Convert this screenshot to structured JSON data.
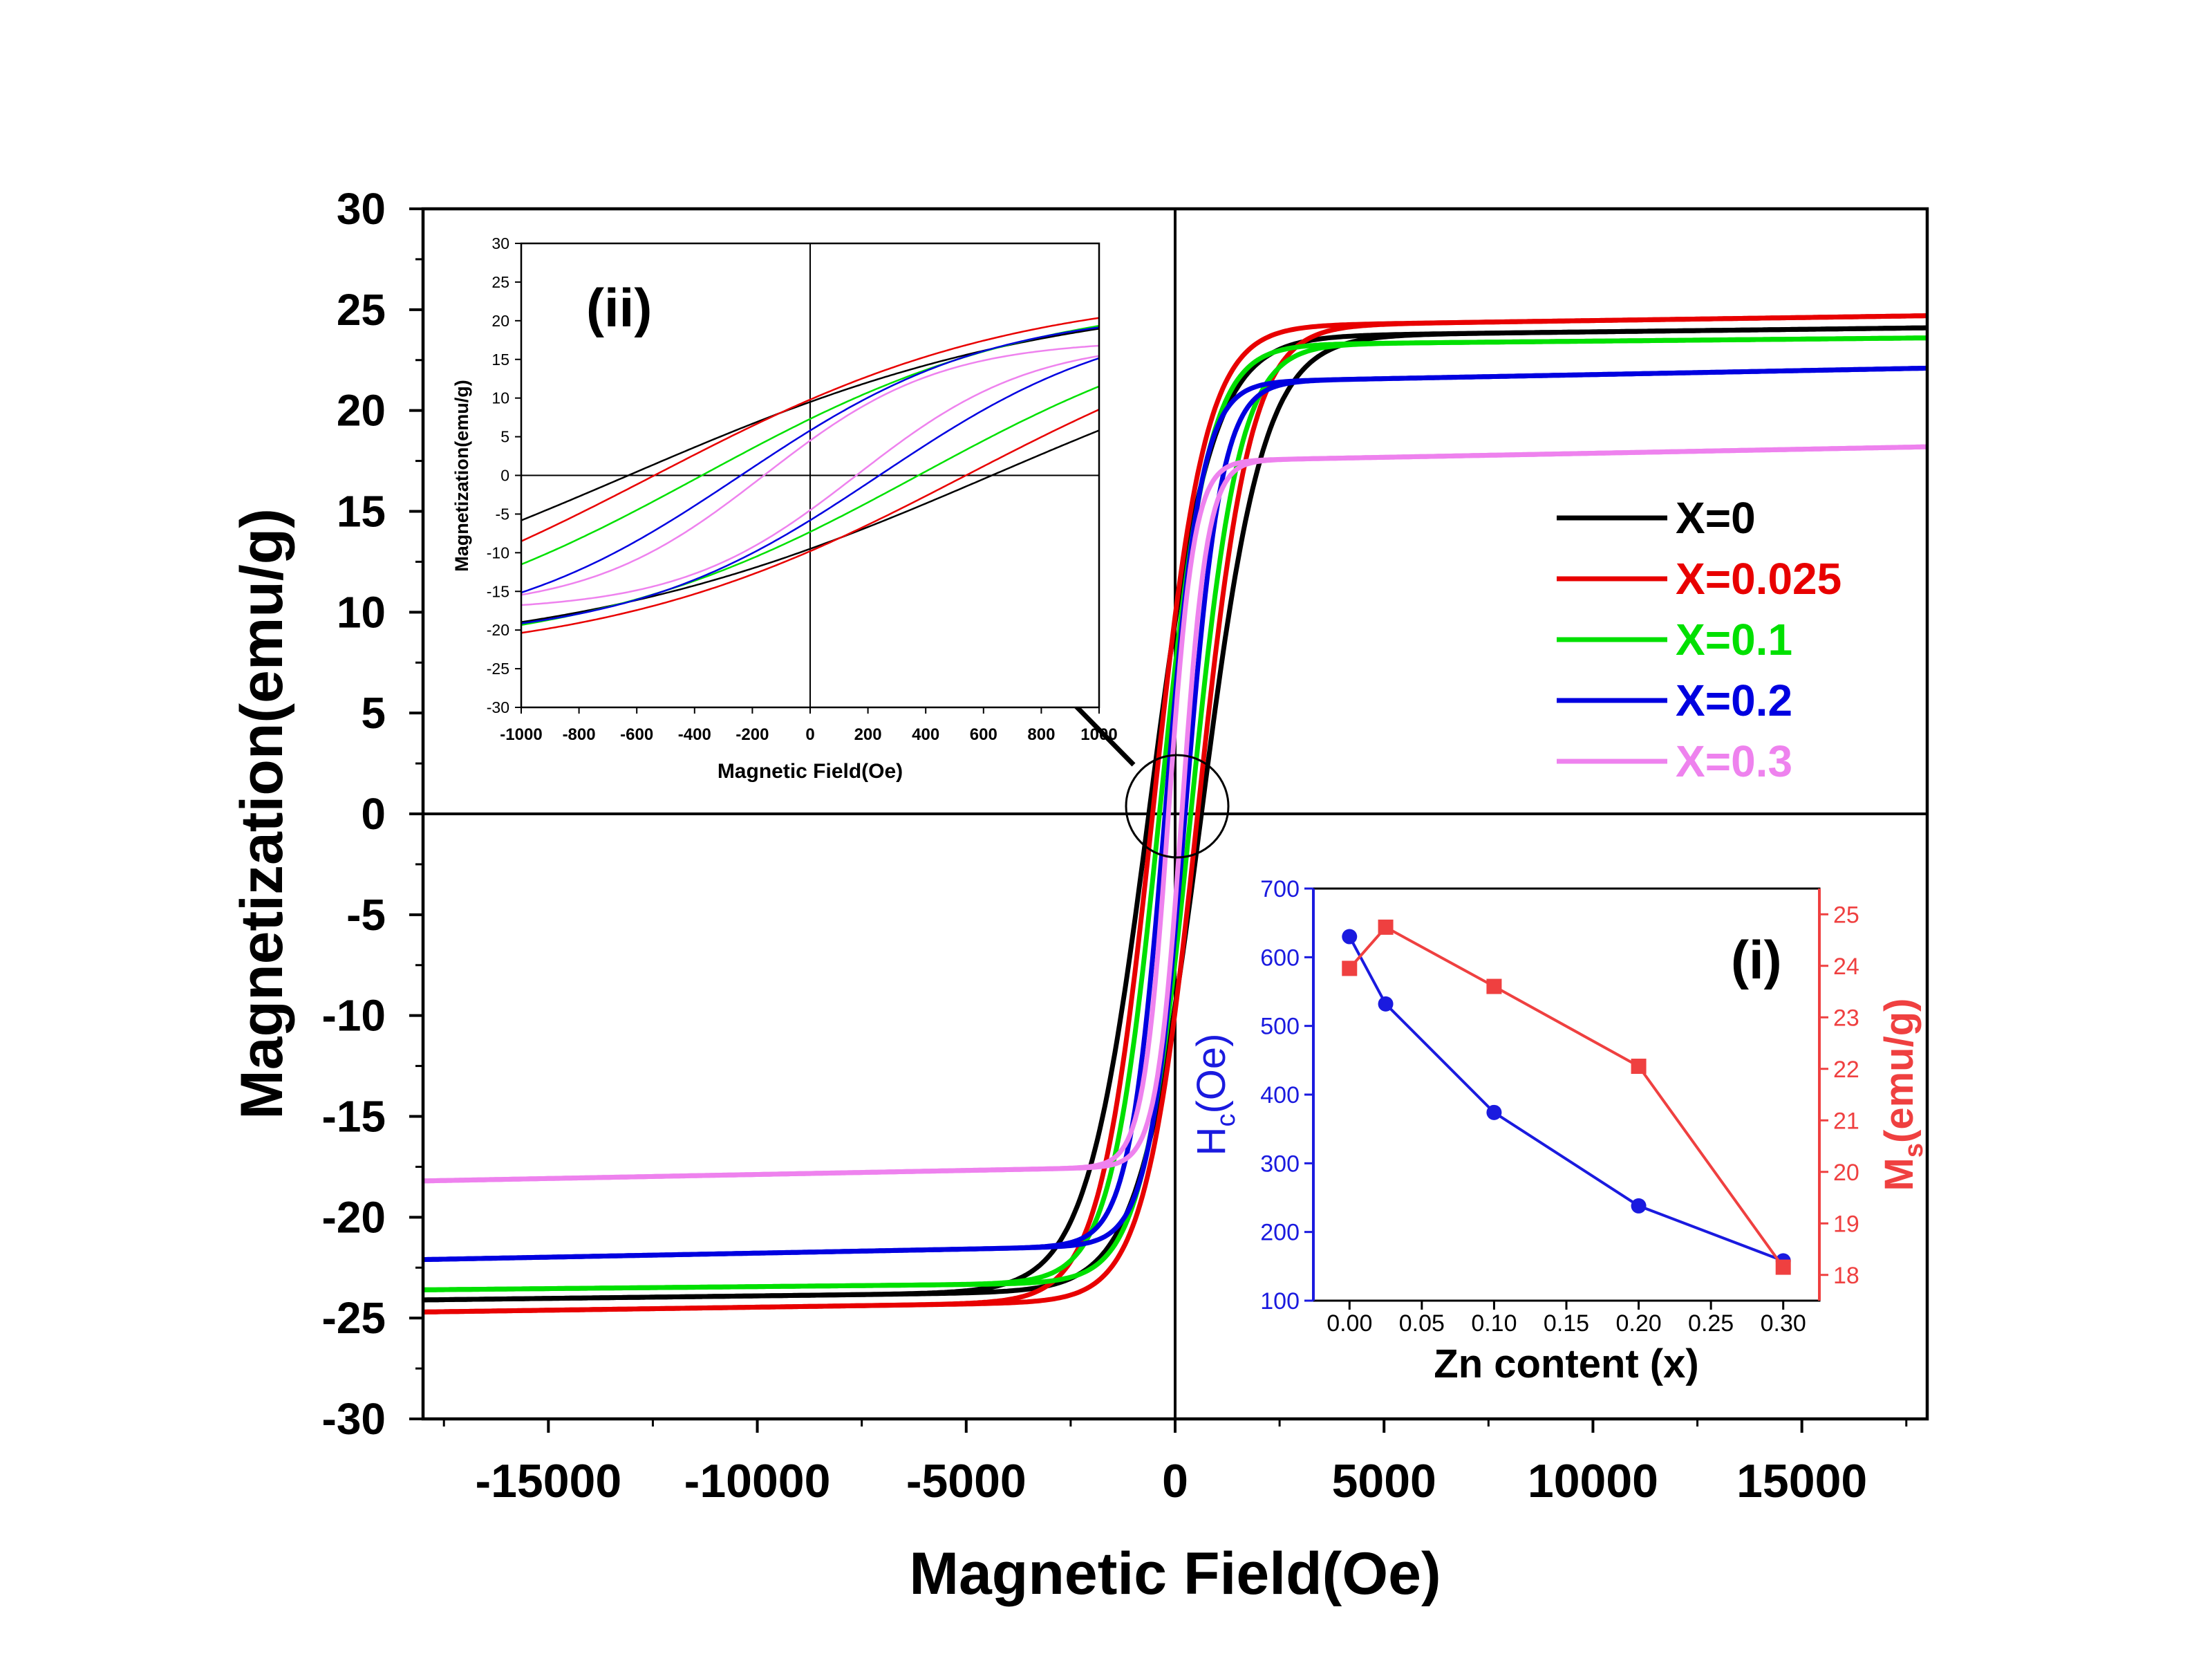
{
  "chart_data": [
    {
      "id": "main",
      "type": "line",
      "title": "",
      "xlabel": "Magnetic Field(Oe)",
      "ylabel": "Magnetization(emu/g)",
      "xlim": [
        -18000,
        18000
      ],
      "ylim": [
        -30,
        30
      ],
      "xticks": [
        -15000,
        -10000,
        -5000,
        0,
        5000,
        10000,
        15000
      ],
      "xtick_labels": [
        "-15000",
        "-10000",
        "-5000",
        "0",
        "5000",
        "10000",
        "15000"
      ],
      "yticks": [
        -30,
        -25,
        -20,
        -15,
        -10,
        -5,
        0,
        5,
        10,
        15,
        20,
        25,
        30
      ],
      "ytick_labels": [
        "-30",
        "-25",
        "-20",
        "-15",
        "-10",
        "-5",
        "0",
        "5",
        "10",
        "15",
        "20",
        "25",
        "30"
      ],
      "legend_position": "right",
      "grid": false,
      "series": [
        {
          "name": "X=0",
          "color": "#000000",
          "ms": 24.1,
          "hc": 630,
          "mr": 9.5,
          "slope": 2.5e-05
        },
        {
          "name": "X=0.025",
          "color": "#e80000",
          "ms": 24.7,
          "hc": 540,
          "mr": 9.8,
          "slope": 3e-05
        },
        {
          "name": "X=0.1",
          "color": "#00e000",
          "ms": 23.6,
          "hc": 375,
          "mr": 7.3,
          "slope": 2e-05
        },
        {
          "name": "X=0.2",
          "color": "#0000e0",
          "ms": 22.1,
          "hc": 240,
          "mr": 5.8,
          "slope": 4e-05
        },
        {
          "name": "X=0.3",
          "color": "#ee82ee",
          "ms": 18.2,
          "hc": 160,
          "mr": 4.5,
          "slope": 4e-05
        }
      ]
    },
    {
      "id": "inset-ii",
      "type": "line",
      "label": "(ii)",
      "xlabel": "Magnetic Field(Oe)",
      "ylabel": "Magnetization(emu/g)",
      "xlim": [
        -1000,
        1000
      ],
      "ylim": [
        -30,
        30
      ],
      "xticks": [
        -1000,
        -800,
        -600,
        -400,
        -200,
        0,
        200,
        400,
        600,
        800,
        1000
      ],
      "xtick_labels": [
        "-1000",
        "-800",
        "-600",
        "-400",
        "-200",
        "0",
        "200",
        "400",
        "600",
        "800",
        "1000"
      ],
      "yticks": [
        -30,
        -25,
        -20,
        -15,
        -10,
        -5,
        0,
        5,
        10,
        15,
        20,
        25,
        30
      ],
      "ytick_labels": [
        "-30",
        "-25",
        "-20",
        "-15",
        "-10",
        "-5",
        "0",
        "5",
        "10",
        "15",
        "20",
        "25",
        "30"
      ],
      "note": "zoomed view of the main loops near the origin"
    },
    {
      "id": "inset-i",
      "type": "line",
      "label": "(i)",
      "xlabel": "Zn content (x)",
      "x": [
        0.0,
        0.025,
        0.1,
        0.2,
        0.3
      ],
      "xlim": [
        -0.025,
        0.325
      ],
      "xticks": [
        0.0,
        0.05,
        0.1,
        0.15,
        0.2,
        0.25,
        0.3
      ],
      "xtick_labels": [
        "0.00",
        "0.05",
        "0.10",
        "0.15",
        "0.20",
        "0.25",
        "0.30"
      ],
      "series": [
        {
          "name": "Hc",
          "axis": "left",
          "color": "#1a1adf",
          "marker": "circle",
          "values": [
            630,
            532,
            374,
            238,
            158
          ]
        },
        {
          "name": "Ms",
          "axis": "right",
          "color": "#ef4040",
          "marker": "square",
          "values": [
            23.95,
            24.75,
            23.6,
            22.05,
            18.15
          ]
        }
      ],
      "left_axis": {
        "label_main": "H",
        "label_sub": "c",
        "label_end": "(Oe)",
        "lim": [
          100,
          700
        ],
        "ticks": [
          100,
          200,
          300,
          400,
          500,
          600,
          700
        ],
        "tick_labels": [
          "100",
          "200",
          "300",
          "400",
          "500",
          "600",
          "700"
        ]
      },
      "right_axis": {
        "label_main": "M",
        "label_sub": "s",
        "label_end": "(emu/g)",
        "lim": [
          17.5,
          25.5
        ],
        "ticks": [
          18,
          19,
          20,
          21,
          22,
          23,
          24,
          25
        ],
        "tick_labels": [
          "18",
          "19",
          "20",
          "21",
          "22",
          "23",
          "24",
          "25"
        ]
      }
    }
  ]
}
